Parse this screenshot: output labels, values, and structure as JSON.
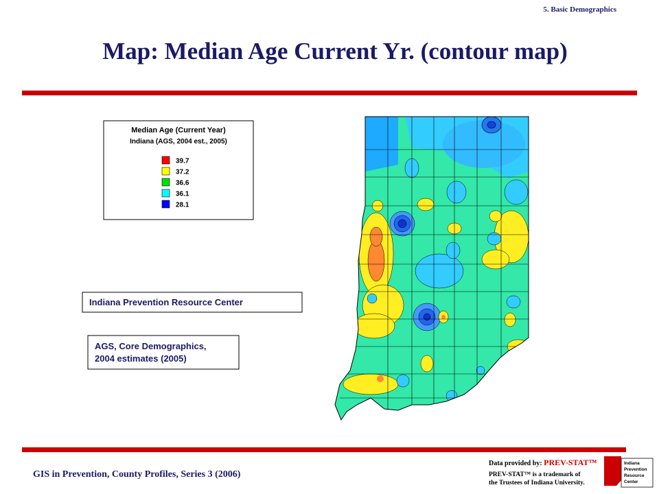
{
  "header": {
    "section": "5. Basic Demographics",
    "title": "Map:  Median Age Current Yr. (contour map)"
  },
  "legend": {
    "title": "Median Age (Current Year)",
    "subtitle": "Indiana (AGS, 2004 est., 2005)",
    "items": [
      {
        "value": 39.7,
        "color": "#ff0000"
      },
      {
        "value": 37.2,
        "color": "#ffff00"
      },
      {
        "value": 36.6,
        "color": "#00e000"
      },
      {
        "value": 36.1,
        "color": "#00ffff"
      },
      {
        "value": 28.1,
        "color": "#0000ff"
      }
    ]
  },
  "source_box": {
    "text": "Indiana Prevention Resource Center"
  },
  "data_box": {
    "lines": [
      "AGS, Core Demographics,",
      "2004 estimates (2005)"
    ]
  },
  "footer": {
    "text": "GIS in Prevention, County Profiles, Series 3 (2006)",
    "logo": {
      "provided_by": "Data provided by:",
      "brand": "PREV-STAT™",
      "trademark_lines": [
        "PREV-STAT™ is a trademark of",
        "the Trustees of Indiana University."
      ],
      "org_lines": [
        "Indiana",
        "Prevention",
        "Resource",
        "Center"
      ]
    }
  }
}
